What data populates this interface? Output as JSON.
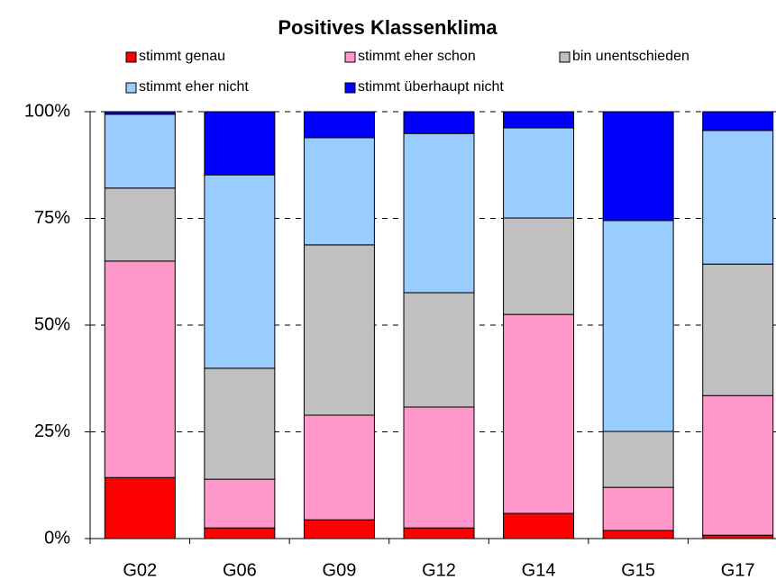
{
  "chart_data": {
    "type": "stacked_bar",
    "title": "Positives Klassenklima",
    "categories": [
      "G02",
      "G06",
      "G09",
      "G12",
      "G14",
      "G15",
      "G17"
    ],
    "series": [
      {
        "name": "stimmt genau",
        "color": "#ff0000",
        "values": [
          14.3,
          2.5,
          4.4,
          2.5,
          5.9,
          1.9,
          0.8
        ]
      },
      {
        "name": "stimmt eher schon",
        "color": "#ff99cc",
        "values": [
          50.7,
          11.4,
          24.5,
          28.3,
          46.6,
          10.1,
          32.7
        ]
      },
      {
        "name": "bin unentschieden",
        "color": "#c0c0c0",
        "values": [
          17.1,
          26.0,
          39.9,
          26.8,
          22.6,
          13.1,
          30.8
        ]
      },
      {
        "name": "stimmt eher nicht",
        "color": "#99ccff",
        "values": [
          17.3,
          45.3,
          25.1,
          37.3,
          21.1,
          49.4,
          31.3
        ]
      },
      {
        "name": "stimmt überhaupt nicht",
        "color": "#0000ff",
        "values": [
          0.6,
          14.8,
          6.1,
          5.1,
          3.8,
          25.5,
          4.4
        ]
      }
    ],
    "ylim": [
      0,
      100
    ],
    "yticks": [
      {
        "value": 0,
        "label": "0%"
      },
      {
        "value": 25,
        "label": "25%"
      },
      {
        "value": 50,
        "label": "50%"
      },
      {
        "value": 75,
        "label": "75%"
      },
      {
        "value": 100,
        "label": "100%"
      }
    ],
    "grid": true,
    "legend_position": "top"
  }
}
